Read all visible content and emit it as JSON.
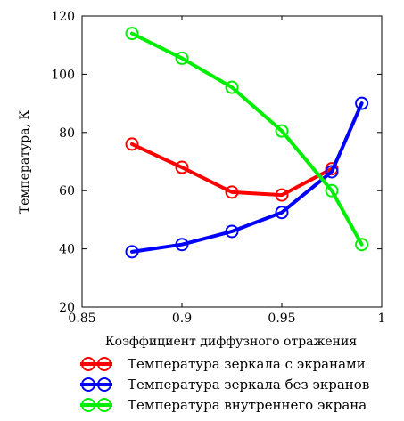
{
  "chart_data": {
    "type": "line",
    "xlabel": "Коэффициент диффузного отражения",
    "ylabel": "Температура, К",
    "xlim": [
      0.85,
      1
    ],
    "ylim": [
      20,
      120
    ],
    "xticks": [
      "0.85",
      "0.9",
      "0.95",
      "1"
    ],
    "yticks": [
      "20",
      "40",
      "60",
      "80",
      "100",
      "120"
    ],
    "grid": false,
    "legend_position": "bottom",
    "x": [
      0.875,
      0.9,
      0.925,
      0.95,
      0.975,
      0.99
    ],
    "series": [
      {
        "name": "Температура зеркала с экранами",
        "color": "#ff0000",
        "values": [
          76,
          68,
          59.5,
          58.5,
          67.5,
          null
        ]
      },
      {
        "name": "Температура зеркала без экранов",
        "color": "#0000ff",
        "values": [
          39,
          41.5,
          46,
          52.5,
          66.5,
          90
        ]
      },
      {
        "name": "Температура внутреннего экрана",
        "color": "#00ee00",
        "values": [
          114,
          105.5,
          95.5,
          80.5,
          60,
          41.5
        ]
      }
    ]
  }
}
